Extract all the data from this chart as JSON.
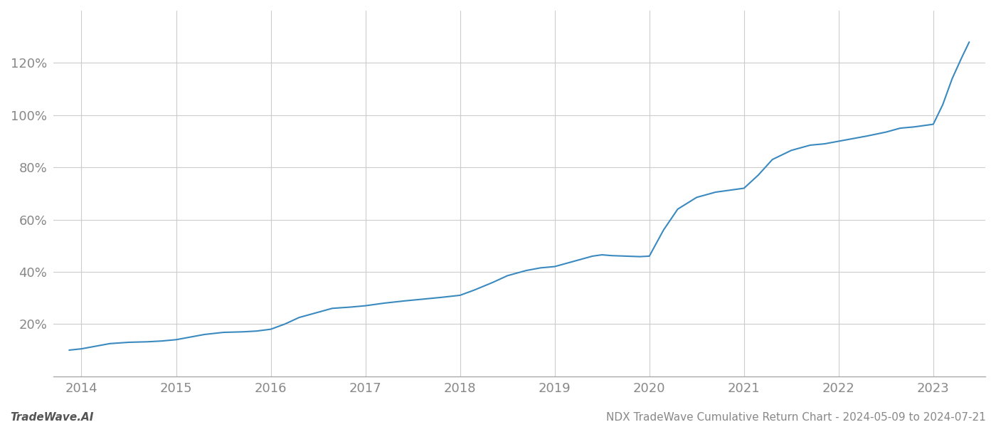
{
  "title": "",
  "footer_left": "TradeWave.AI",
  "footer_right": "NDX TradeWave Cumulative Return Chart - 2024-05-09 to 2024-07-21",
  "line_color": "#3a8abf",
  "line_width": 1.5,
  "background_color": "#ffffff",
  "grid_color": "#cccccc",
  "x_years": [
    2014,
    2015,
    2016,
    2017,
    2018,
    2019,
    2020,
    2021,
    2022,
    2023
  ],
  "x_values": [
    2013.87,
    2014.0,
    2014.15,
    2014.3,
    2014.5,
    2014.7,
    2014.85,
    2015.0,
    2015.15,
    2015.3,
    2015.5,
    2015.7,
    2015.85,
    2016.0,
    2016.15,
    2016.3,
    2016.5,
    2016.65,
    2016.85,
    2017.0,
    2017.2,
    2017.4,
    2017.6,
    2017.8,
    2017.95,
    2018.0,
    2018.15,
    2018.35,
    2018.5,
    2018.7,
    2018.85,
    2019.0,
    2019.1,
    2019.2,
    2019.3,
    2019.4,
    2019.5,
    2019.6,
    2019.75,
    2019.9,
    2020.0,
    2020.15,
    2020.3,
    2020.5,
    2020.7,
    2020.9,
    2021.0,
    2021.15,
    2021.3,
    2021.5,
    2021.7,
    2021.85,
    2022.0,
    2022.15,
    2022.3,
    2022.5,
    2022.65,
    2022.8,
    2023.0,
    2023.1,
    2023.2,
    2023.3,
    2023.38
  ],
  "y_values": [
    10.0,
    10.5,
    11.5,
    12.5,
    13.0,
    13.2,
    13.5,
    14.0,
    15.0,
    16.0,
    16.8,
    17.0,
    17.3,
    18.0,
    20.0,
    22.5,
    24.5,
    26.0,
    26.5,
    27.0,
    28.0,
    28.8,
    29.5,
    30.2,
    30.8,
    31.0,
    33.0,
    36.0,
    38.5,
    40.5,
    41.5,
    42.0,
    43.0,
    44.0,
    45.0,
    46.0,
    46.5,
    46.2,
    46.0,
    45.8,
    46.0,
    56.0,
    64.0,
    68.5,
    70.5,
    71.5,
    72.0,
    77.0,
    83.0,
    86.5,
    88.5,
    89.0,
    90.0,
    91.0,
    92.0,
    93.5,
    95.0,
    95.5,
    96.5,
    104.0,
    114.0,
    122.0,
    128.0
  ],
  "ylim": [
    0,
    140
  ],
  "yticks": [
    20,
    40,
    60,
    80,
    100,
    120
  ],
  "xlim": [
    2013.7,
    2023.55
  ],
  "tick_color": "#888888",
  "tick_fontsize": 13,
  "footer_fontsize": 11
}
